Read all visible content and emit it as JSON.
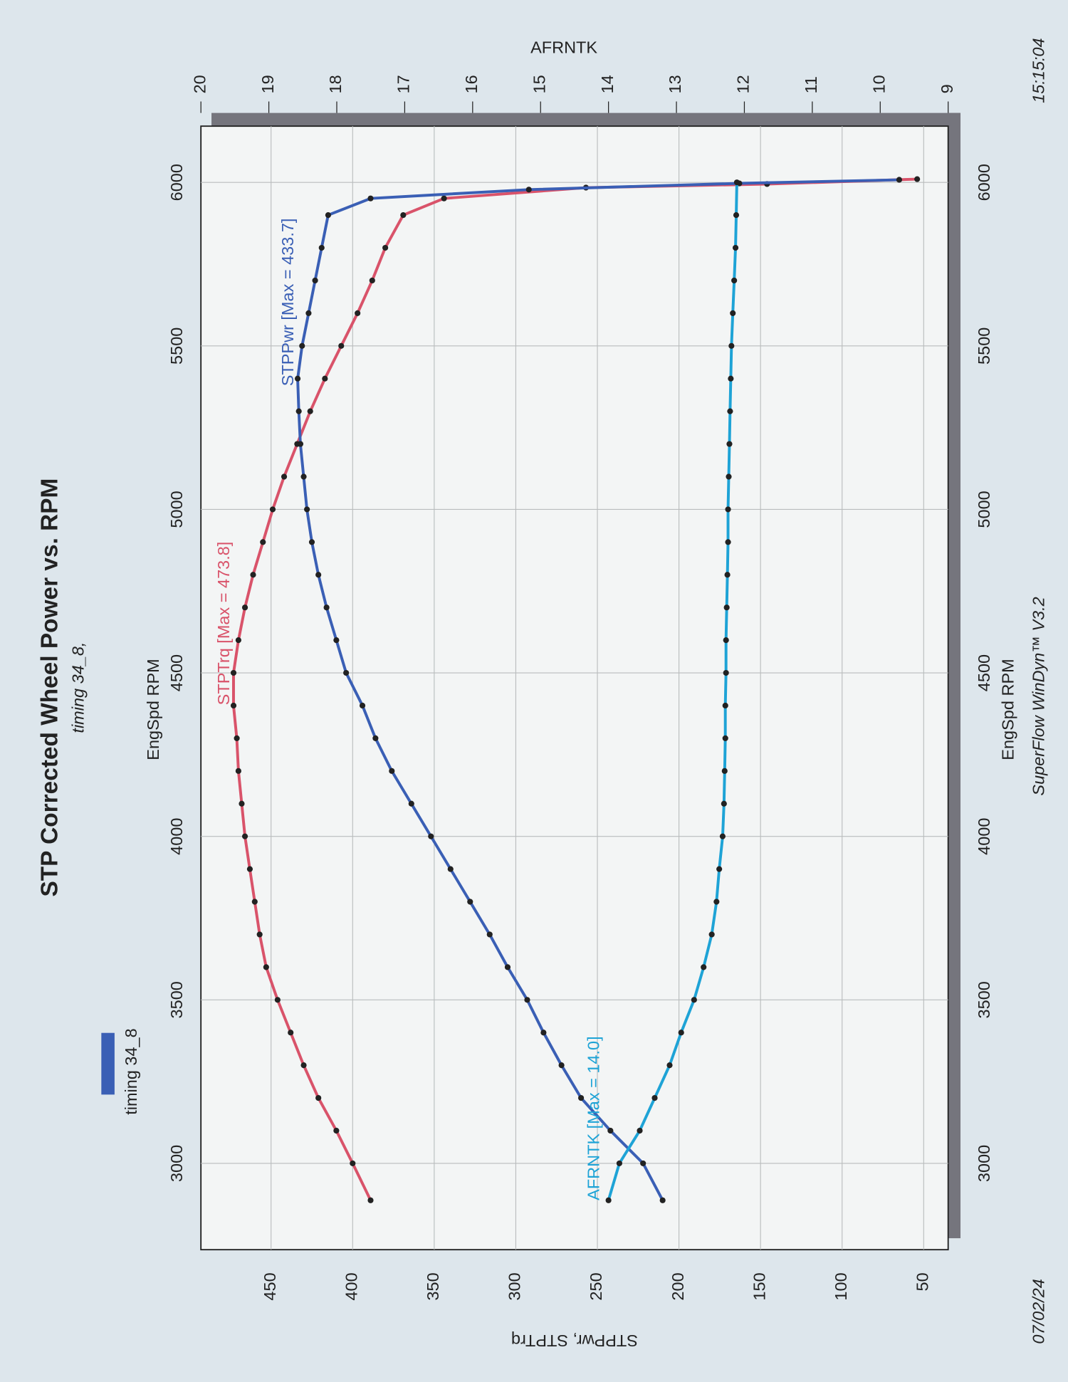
{
  "chart_data": {
    "type": "line",
    "title": "STP Corrected Wheel Power vs. RPM",
    "subtitle": "timing 34_8,",
    "x_label": "EngSpd RPM",
    "y_label": "STPPwr, STPTrq",
    "y2_label": "AFRNTK",
    "footer": "SuperFlow WinDyn™ V3.2",
    "date": "07/02/24",
    "time": "15:15:04",
    "legend": {
      "label": "timing 34_8",
      "color": "#3a5fb5"
    },
    "xlim": [
      2736,
      6172
    ],
    "xticks": [
      3000,
      3500,
      4000,
      4500,
      5000,
      5500,
      6000
    ],
    "ylim": [
      35,
      493
    ],
    "yticks": [
      50,
      100,
      150,
      200,
      250,
      300,
      350,
      400,
      450
    ],
    "y2lim": [
      9,
      20
    ],
    "y2ticks": [
      9,
      10,
      11,
      12,
      13,
      14,
      15,
      16,
      17,
      18,
      19,
      20
    ],
    "grid": true,
    "series": [
      {
        "name": "STPTrq [Max = 473.8]",
        "color": "#d9536a",
        "x": [
          2887,
          3000,
          3100,
          3200,
          3300,
          3400,
          3500,
          3600,
          3700,
          3800,
          3900,
          4000,
          4100,
          4200,
          4300,
          4400,
          4500,
          4600,
          4700,
          4800,
          4900,
          5000,
          5100,
          5200,
          5300,
          5400,
          5500,
          5600,
          5700,
          5800,
          5900,
          5951,
          5984,
          5995,
          6010
        ],
        "values": [
          389,
          400,
          410,
          421,
          430,
          438,
          446,
          453,
          457,
          460,
          463,
          466,
          468,
          470,
          471,
          473,
          473,
          470,
          466,
          461,
          455,
          449,
          442,
          434,
          426,
          417,
          407,
          397,
          388,
          380,
          369,
          344,
          257,
          146,
          54
        ]
      },
      {
        "name": "STPPwr [Max = 433.7]",
        "color": "#3a5fb5",
        "x": [
          2887,
          3000,
          3100,
          3200,
          3300,
          3400,
          3500,
          3600,
          3700,
          3800,
          3900,
          4000,
          4100,
          4200,
          4300,
          4400,
          4500,
          4600,
          4700,
          4800,
          4900,
          5000,
          5100,
          5200,
          5300,
          5400,
          5500,
          5600,
          5700,
          5800,
          5900,
          5951,
          5978,
          5997,
          6008
        ],
        "values": [
          210,
          222,
          242,
          260,
          272,
          283,
          293,
          305,
          316,
          328,
          340,
          352,
          364,
          376,
          386,
          394,
          404,
          410,
          416,
          421,
          425,
          428,
          430,
          432,
          433,
          433.7,
          431,
          427,
          423,
          419,
          415,
          389,
          292,
          163,
          65
        ]
      },
      {
        "name": "AFRNTK [Max = 14.0]",
        "color": "#1ea3d6",
        "axis": "y2",
        "x": [
          2887,
          3000,
          3100,
          3200,
          3300,
          3400,
          3500,
          3600,
          3700,
          3800,
          3900,
          4000,
          4100,
          4200,
          4300,
          4400,
          4500,
          4600,
          4700,
          4800,
          4900,
          5000,
          5100,
          5200,
          5300,
          5400,
          5500,
          5600,
          5700,
          5800,
          5900,
          6000
        ],
        "values": [
          14.0,
          13.84,
          13.54,
          13.32,
          13.1,
          12.93,
          12.74,
          12.6,
          12.48,
          12.41,
          12.37,
          12.32,
          12.3,
          12.29,
          12.28,
          12.28,
          12.27,
          12.27,
          12.26,
          12.25,
          12.24,
          12.24,
          12.23,
          12.22,
          12.21,
          12.2,
          12.19,
          12.17,
          12.15,
          12.13,
          12.12,
          12.11
        ]
      }
    ]
  }
}
